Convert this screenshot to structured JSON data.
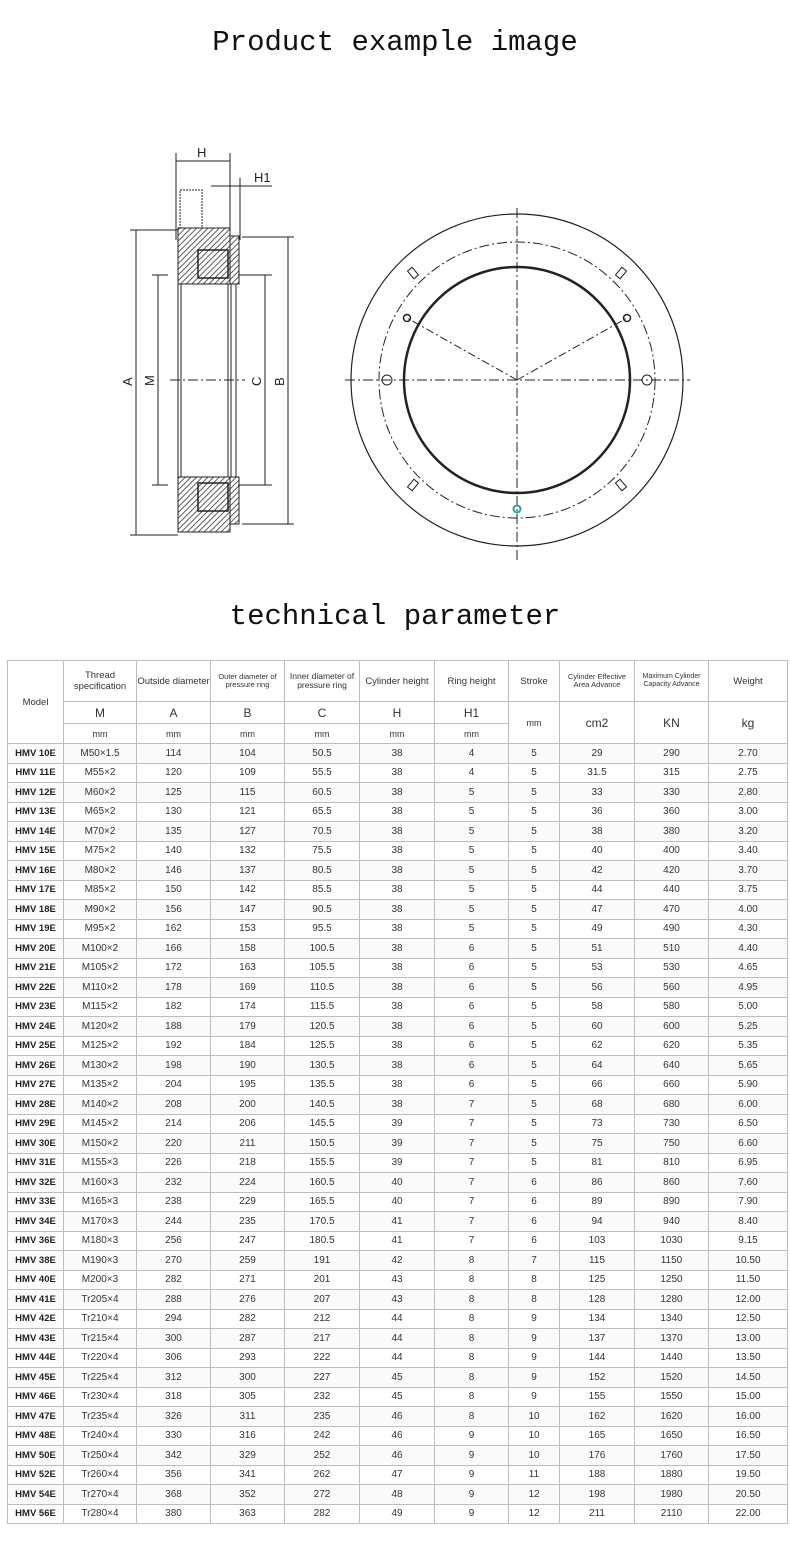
{
  "titles": {
    "product_image": "Product example image",
    "technical_parameter": "technical parameter"
  },
  "drawing": {
    "labels": {
      "H": "H",
      "H1": "H1",
      "A": "A",
      "M": "M",
      "C": "C",
      "B": "B"
    },
    "accent_color": "#2aa198"
  },
  "table": {
    "headers": [
      "Model",
      "Thread specification",
      "Outside diameter",
      "Outer diameter of pressure ring",
      "Inner diameter of pressure ring",
      "Cylinder height",
      "Ring height",
      "Stroke",
      "Cylinder Effective Area Advance",
      "Maximum Cylinder Capacity Advance",
      "Weight"
    ],
    "symbols": [
      "M",
      "A",
      "B",
      "C",
      "H",
      "H1"
    ],
    "units": [
      "mm",
      "mm",
      "mm",
      "mm",
      "mm",
      "mm",
      "mm",
      "cm2",
      "KN",
      "kg"
    ],
    "rows": [
      [
        "HMV 10E",
        "M50×1.5",
        "114",
        "104",
        "50.5",
        "38",
        "4",
        "5",
        "29",
        "290",
        "2.70"
      ],
      [
        "HMV 11E",
        "M55×2",
        "120",
        "109",
        "55.5",
        "38",
        "4",
        "5",
        "31.5",
        "315",
        "2.75"
      ],
      [
        "HMV 12E",
        "M60×2",
        "125",
        "115",
        "60.5",
        "38",
        "5",
        "5",
        "33",
        "330",
        "2.80"
      ],
      [
        "HMV 13E",
        "M65×2",
        "130",
        "121",
        "65.5",
        "38",
        "5",
        "5",
        "36",
        "360",
        "3.00"
      ],
      [
        "HMV 14E",
        "M70×2",
        "135",
        "127",
        "70.5",
        "38",
        "5",
        "5",
        "38",
        "380",
        "3.20"
      ],
      [
        "HMV 15E",
        "M75×2",
        "140",
        "132",
        "75.5",
        "38",
        "5",
        "5",
        "40",
        "400",
        "3.40"
      ],
      [
        "HMV 16E",
        "M80×2",
        "146",
        "137",
        "80.5",
        "38",
        "5",
        "5",
        "42",
        "420",
        "3.70"
      ],
      [
        "HMV 17E",
        "M85×2",
        "150",
        "142",
        "85.5",
        "38",
        "5",
        "5",
        "44",
        "440",
        "3.75"
      ],
      [
        "HMV 18E",
        "M90×2",
        "156",
        "147",
        "90.5",
        "38",
        "5",
        "5",
        "47",
        "470",
        "4.00"
      ],
      [
        "HMV 19E",
        "M95×2",
        "162",
        "153",
        "95.5",
        "38",
        "5",
        "5",
        "49",
        "490",
        "4.30"
      ],
      [
        "HMV 20E",
        "M100×2",
        "166",
        "158",
        "100.5",
        "38",
        "6",
        "5",
        "51",
        "510",
        "4.40"
      ],
      [
        "HMV 21E",
        "M105×2",
        "172",
        "163",
        "105.5",
        "38",
        "6",
        "5",
        "53",
        "530",
        "4.65"
      ],
      [
        "HMV 22E",
        "M110×2",
        "178",
        "169",
        "110.5",
        "38",
        "6",
        "5",
        "56",
        "560",
        "4.95"
      ],
      [
        "HMV 23E",
        "M115×2",
        "182",
        "174",
        "115.5",
        "38",
        "6",
        "5",
        "58",
        "580",
        "5.00"
      ],
      [
        "HMV 24E",
        "M120×2",
        "188",
        "179",
        "120.5",
        "38",
        "6",
        "5",
        "60",
        "600",
        "5.25"
      ],
      [
        "HMV 25E",
        "M125×2",
        "192",
        "184",
        "125.5",
        "38",
        "6",
        "5",
        "62",
        "620",
        "5.35"
      ],
      [
        "HMV 26E",
        "M130×2",
        "198",
        "190",
        "130.5",
        "38",
        "6",
        "5",
        "64",
        "640",
        "5.65"
      ],
      [
        "HMV 27E",
        "M135×2",
        "204",
        "195",
        "135.5",
        "38",
        "6",
        "5",
        "66",
        "660",
        "5.90"
      ],
      [
        "HMV 28E",
        "M140×2",
        "208",
        "200",
        "140.5",
        "38",
        "7",
        "5",
        "68",
        "680",
        "6.00"
      ],
      [
        "HMV 29E",
        "M145×2",
        "214",
        "206",
        "145.5",
        "39",
        "7",
        "5",
        "73",
        "730",
        "6.50"
      ],
      [
        "HMV 30E",
        "M150×2",
        "220",
        "211",
        "150.5",
        "39",
        "7",
        "5",
        "75",
        "750",
        "6.60"
      ],
      [
        "HMV 31E",
        "M155×3",
        "226",
        "218",
        "155.5",
        "39",
        "7",
        "5",
        "81",
        "810",
        "6.95"
      ],
      [
        "HMV 32E",
        "M160×3",
        "232",
        "224",
        "160.5",
        "40",
        "7",
        "6",
        "86",
        "860",
        "7.60"
      ],
      [
        "HMV 33E",
        "M165×3",
        "238",
        "229",
        "165.5",
        "40",
        "7",
        "6",
        "89",
        "890",
        "7.90"
      ],
      [
        "HMV 34E",
        "M170×3",
        "244",
        "235",
        "170.5",
        "41",
        "7",
        "6",
        "94",
        "940",
        "8.40"
      ],
      [
        "HMV 36E",
        "M180×3",
        "256",
        "247",
        "180.5",
        "41",
        "7",
        "6",
        "103",
        "1030",
        "9.15"
      ],
      [
        "HMV 38E",
        "M190×3",
        "270",
        "259",
        "191",
        "42",
        "8",
        "7",
        "115",
        "1150",
        "10.50"
      ],
      [
        "HMV 40E",
        "M200×3",
        "282",
        "271",
        "201",
        "43",
        "8",
        "8",
        "125",
        "1250",
        "11.50"
      ],
      [
        "HMV 41E",
        "Tr205×4",
        "288",
        "276",
        "207",
        "43",
        "8",
        "8",
        "128",
        "1280",
        "12.00"
      ],
      [
        "HMV 42E",
        "Tr210×4",
        "294",
        "282",
        "212",
        "44",
        "8",
        "9",
        "134",
        "1340",
        "12.50"
      ],
      [
        "HMV 43E",
        "Tr215×4",
        "300",
        "287",
        "217",
        "44",
        "8",
        "9",
        "137",
        "1370",
        "13.00"
      ],
      [
        "HMV 44E",
        "Tr220×4",
        "306",
        "293",
        "222",
        "44",
        "8",
        "9",
        "144",
        "1440",
        "13.50"
      ],
      [
        "HMV 45E",
        "Tr225×4",
        "312",
        "300",
        "227",
        "45",
        "8",
        "9",
        "152",
        "1520",
        "14.50"
      ],
      [
        "HMV 46E",
        "Tr230×4",
        "318",
        "305",
        "232",
        "45",
        "8",
        "9",
        "155",
        "1550",
        "15.00"
      ],
      [
        "HMV 47E",
        "Tr235×4",
        "326",
        "311",
        "235",
        "46",
        "8",
        "10",
        "162",
        "1620",
        "16.00"
      ],
      [
        "HMV 48E",
        "Tr240×4",
        "330",
        "316",
        "242",
        "46",
        "9",
        "10",
        "165",
        "1650",
        "16.50"
      ],
      [
        "HMV 50E",
        "Tr250×4",
        "342",
        "329",
        "252",
        "46",
        "9",
        "10",
        "176",
        "1760",
        "17.50"
      ],
      [
        "HMV 52E",
        "Tr260×4",
        "356",
        "341",
        "262",
        "47",
        "9",
        "11",
        "188",
        "1880",
        "19.50"
      ],
      [
        "HMV 54E",
        "Tr270×4",
        "368",
        "352",
        "272",
        "48",
        "9",
        "12",
        "198",
        "1980",
        "20.50"
      ],
      [
        "HMV 56E",
        "Tr280×4",
        "380",
        "363",
        "282",
        "49",
        "9",
        "12",
        "211",
        "2110",
        "22.00"
      ]
    ]
  }
}
